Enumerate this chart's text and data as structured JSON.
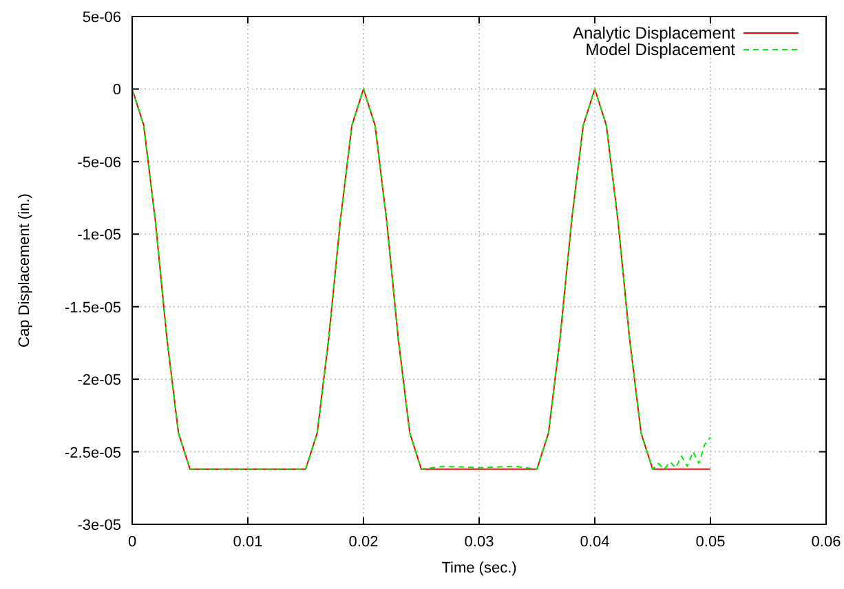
{
  "chart_data": {
    "type": "line",
    "xlabel": "Time (sec.)",
    "ylabel": "Cap Displacement (in.)",
    "xlim": [
      0,
      0.06
    ],
    "xticks": [
      0,
      0.01,
      0.02,
      0.03,
      0.04,
      0.05,
      0.06
    ],
    "ylim": [
      -3e-05,
      5e-06
    ],
    "yticks": [
      {
        "value": 5e-06,
        "label": "5e-06"
      },
      {
        "value": 0,
        "label": "0"
      },
      {
        "value": -5e-06,
        "label": "-5e-06"
      },
      {
        "value": -1e-05,
        "label": "-1e-05"
      },
      {
        "value": -1.5e-05,
        "label": "-1.5e-05"
      },
      {
        "value": -2e-05,
        "label": "-2e-05"
      },
      {
        "value": -2.5e-05,
        "label": "-2.5e-05"
      },
      {
        "value": -3e-05,
        "label": "-3e-05"
      }
    ],
    "grid": true,
    "legend": "top right",
    "marker": "none",
    "series": [
      {
        "name": "Analytic Displacement",
        "color": "#ff0000",
        "line_style": "solid",
        "x": [
          0,
          0.001,
          0.002,
          0.003,
          0.004,
          0.005,
          0.015,
          0.016,
          0.017,
          0.018,
          0.019,
          0.02,
          0.021,
          0.022,
          0.023,
          0.024,
          0.025,
          0.035,
          0.036,
          0.037,
          0.038,
          0.039,
          0.04,
          0.041,
          0.042,
          0.043,
          0.044,
          0.045,
          0.05
        ],
        "values": [
          0,
          -2.5e-06,
          -9.05e-06,
          -1.715e-05,
          -2.37e-05,
          -2.62e-05,
          -2.62e-05,
          -2.37e-05,
          -1.715e-05,
          -9.05e-06,
          -2.5e-06,
          0,
          -2.5e-06,
          -9.05e-06,
          -1.715e-05,
          -2.37e-05,
          -2.62e-05,
          -2.62e-05,
          -2.37e-05,
          -1.715e-05,
          -9.05e-06,
          -2.5e-06,
          0,
          -2.5e-06,
          -9.05e-06,
          -1.715e-05,
          -2.37e-05,
          -2.62e-05,
          -2.62e-05
        ]
      },
      {
        "name": "Model Displacement",
        "color": "#00ee00",
        "line_style": "dashed",
        "x": [
          0,
          0.001,
          0.002,
          0.003,
          0.004,
          0.005,
          0.015,
          0.016,
          0.017,
          0.018,
          0.019,
          0.02,
          0.021,
          0.022,
          0.023,
          0.024,
          0.025,
          0.027,
          0.03,
          0.033,
          0.035,
          0.036,
          0.037,
          0.038,
          0.039,
          0.04,
          0.041,
          0.042,
          0.043,
          0.044,
          0.045,
          0.0455,
          0.046,
          0.0465,
          0.047,
          0.0475,
          0.048,
          0.0485,
          0.049,
          0.0495,
          0.05
        ],
        "values": [
          0,
          -2.5e-06,
          -9.05e-06,
          -1.715e-05,
          -2.37e-05,
          -2.62e-05,
          -2.62e-05,
          -2.37e-05,
          -1.715e-05,
          -9.05e-06,
          -2.5e-06,
          0,
          -2.5e-06,
          -9.05e-06,
          -1.715e-05,
          -2.37e-05,
          -2.62e-05,
          -2.6e-05,
          -2.61e-05,
          -2.6e-05,
          -2.62e-05,
          -2.37e-05,
          -1.715e-05,
          -9.05e-06,
          -2.5e-06,
          0,
          -2.5e-06,
          -9.05e-06,
          -1.715e-05,
          -2.37e-05,
          -2.62e-05,
          -2.58e-05,
          -2.62e-05,
          -2.57e-05,
          -2.61e-05,
          -2.53e-05,
          -2.6e-05,
          -2.5e-05,
          -2.58e-05,
          -2.45e-05,
          -2.4e-05
        ]
      }
    ]
  }
}
